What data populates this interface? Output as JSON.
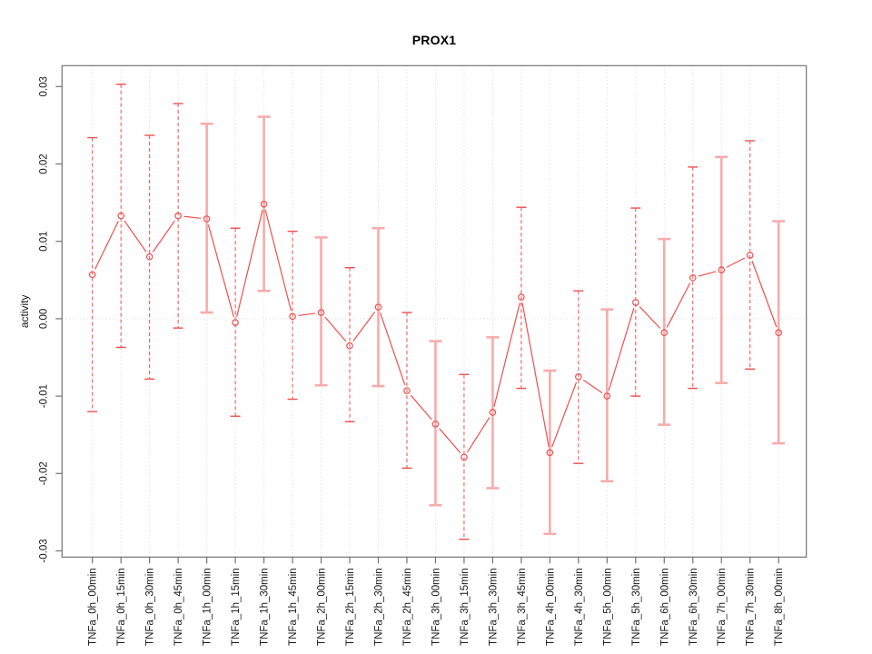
{
  "chart_data": {
    "type": "line",
    "title": "PROX1",
    "xlabel": "",
    "ylabel": "activity",
    "legend": "none",
    "grid": {
      "vertical_dotted": true,
      "zero_line_dotted": true,
      "horizontal": false
    },
    "tick_label_rotation": "vertical",
    "ylim": [
      -0.0308,
      0.0327
    ],
    "yticks": [
      0.03,
      0.02,
      0.01,
      0.0,
      -0.01,
      -0.02,
      -0.03
    ],
    "ytick_labels": [
      "0.03",
      "0.02",
      "0.01",
      "0.00",
      "-0.01",
      "-0.02",
      "-0.03"
    ],
    "categories": [
      "TNFa_0h_00min",
      "TNFa_0h_15min",
      "TNFa_0h_30min",
      "TNFa_0h_45min",
      "TNFa_1h_00min",
      "TNFa_1h_15min",
      "TNFa_1h_30min",
      "TNFa_1h_45min",
      "TNFa_2h_00min",
      "TNFa_2h_15min",
      "TNFa_2h_30min",
      "TNFa_2h_45min",
      "TNFa_3h_00min",
      "TNFa_3h_15min",
      "TNFa_3h_30min",
      "TNFa_3h_45min",
      "TNFa_4h_00min",
      "TNFa_4h_30min",
      "TNFa_5h_00min",
      "TNFa_5h_30min",
      "TNFa_6h_00min",
      "TNFa_6h_30min",
      "TNFa_7h_00min",
      "TNFa_7h_30min",
      "TNFa_8h_00min"
    ],
    "series": [
      {
        "name": "activity",
        "values": [
          0.0057,
          0.0133,
          0.008,
          0.0133,
          0.0129,
          -0.0005,
          0.0148,
          0.0003,
          0.0008,
          -0.0035,
          0.0015,
          -0.0093,
          -0.0136,
          -0.0179,
          -0.0121,
          0.0028,
          -0.0173,
          -0.0075,
          -0.01,
          0.0021,
          -0.0018,
          0.0053,
          0.0063,
          0.0082,
          -0.0018
        ],
        "err_lo": [
          -0.012,
          -0.0037,
          -0.0078,
          -0.0012,
          0.0008,
          -0.0126,
          0.0036,
          -0.0104,
          -0.0086,
          -0.0133,
          -0.0087,
          -0.0193,
          -0.0241,
          -0.0285,
          -0.0219,
          -0.009,
          -0.0278,
          -0.0187,
          -0.021,
          -0.01,
          -0.0137,
          -0.009,
          -0.0083,
          -0.0065,
          -0.0161
        ],
        "err_hi": [
          0.0234,
          0.0303,
          0.0237,
          0.0278,
          0.0252,
          0.0117,
          0.0261,
          0.0113,
          0.0105,
          0.0066,
          0.0117,
          0.0008,
          -0.0029,
          -0.0072,
          -0.0024,
          0.0144,
          -0.0067,
          0.0036,
          0.0012,
          0.0143,
          0.0103,
          0.0196,
          0.0209,
          0.023,
          0.0126
        ]
      }
    ],
    "error_bar_styles": [
      "dashed",
      "dashed",
      "dashed",
      "dashed",
      "solid",
      "dashed",
      "solid",
      "dashed",
      "solid",
      "dashed",
      "solid",
      "dashed",
      "solid",
      "dashed",
      "solid",
      "dashed",
      "solid",
      "dashed",
      "solid",
      "dashed",
      "solid",
      "dashed",
      "solid",
      "dashed",
      "solid"
    ],
    "colors": {
      "line": "#f04f4f",
      "error_bar_solid": "#f8abab",
      "grid": "#d6d6d6",
      "axis": "#737373",
      "text": "#1a1a1a",
      "background": "#ffffff"
    }
  }
}
